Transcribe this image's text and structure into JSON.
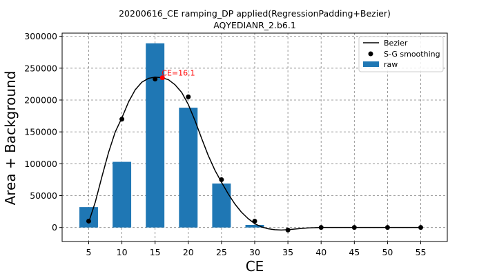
{
  "chart_data": {
    "type": "bar",
    "title": "20200616_CE ramping_DP applied(RegressionPadding+Bezier)",
    "subtitle": "AQYEDIANR_2.b6.1",
    "xlabel": "CE",
    "ylabel": "Area + Background",
    "xlim": [
      1,
      59
    ],
    "ylim": [
      -22000,
      305000
    ],
    "xticks": [
      5,
      10,
      15,
      20,
      25,
      30,
      35,
      40,
      45,
      50,
      55
    ],
    "yticks": [
      0,
      50000,
      100000,
      150000,
      200000,
      250000,
      300000
    ],
    "grid": true,
    "legend_position": "upper-right",
    "colors": {
      "bar": "#1f77b4",
      "line": "#000000",
      "points": "#000000",
      "annotation": "#ff0000"
    },
    "series": [
      {
        "name": "raw",
        "kind": "bar",
        "x": [
          5,
          10,
          15,
          20,
          25,
          30
        ],
        "values": [
          32000,
          103000,
          289000,
          188000,
          69000,
          4000
        ]
      },
      {
        "name": "S-G smoothing",
        "kind": "scatter",
        "x": [
          5,
          10,
          15,
          20,
          25,
          30,
          35,
          40,
          45,
          50,
          55
        ],
        "values": [
          10000,
          170000,
          233000,
          205000,
          75000,
          10000,
          -4000,
          0,
          0,
          0,
          0
        ]
      },
      {
        "name": "Bezier",
        "kind": "line",
        "x": [
          5,
          6,
          7,
          8,
          9,
          10,
          11,
          12,
          13,
          14,
          15,
          16,
          17,
          18,
          19,
          20,
          21,
          22,
          23,
          24,
          25,
          26,
          27,
          28,
          29,
          30,
          31,
          32,
          33,
          34,
          35,
          36,
          37,
          38,
          40,
          45,
          50,
          55
        ],
        "values": [
          8000,
          40000,
          80000,
          118000,
          150000,
          172000,
          197000,
          216000,
          228000,
          234000,
          236000,
          235000,
          232000,
          224000,
          212000,
          193000,
          168000,
          140000,
          113000,
          90000,
          71000,
          53000,
          37000,
          24000,
          14000,
          6000,
          1000,
          -2000,
          -3500,
          -4000,
          -3500,
          -2500,
          -1500,
          -700,
          0,
          0,
          0,
          0
        ]
      }
    ],
    "annotation": {
      "text": "CE=16.1",
      "x": 16.1,
      "y": 235000
    }
  }
}
